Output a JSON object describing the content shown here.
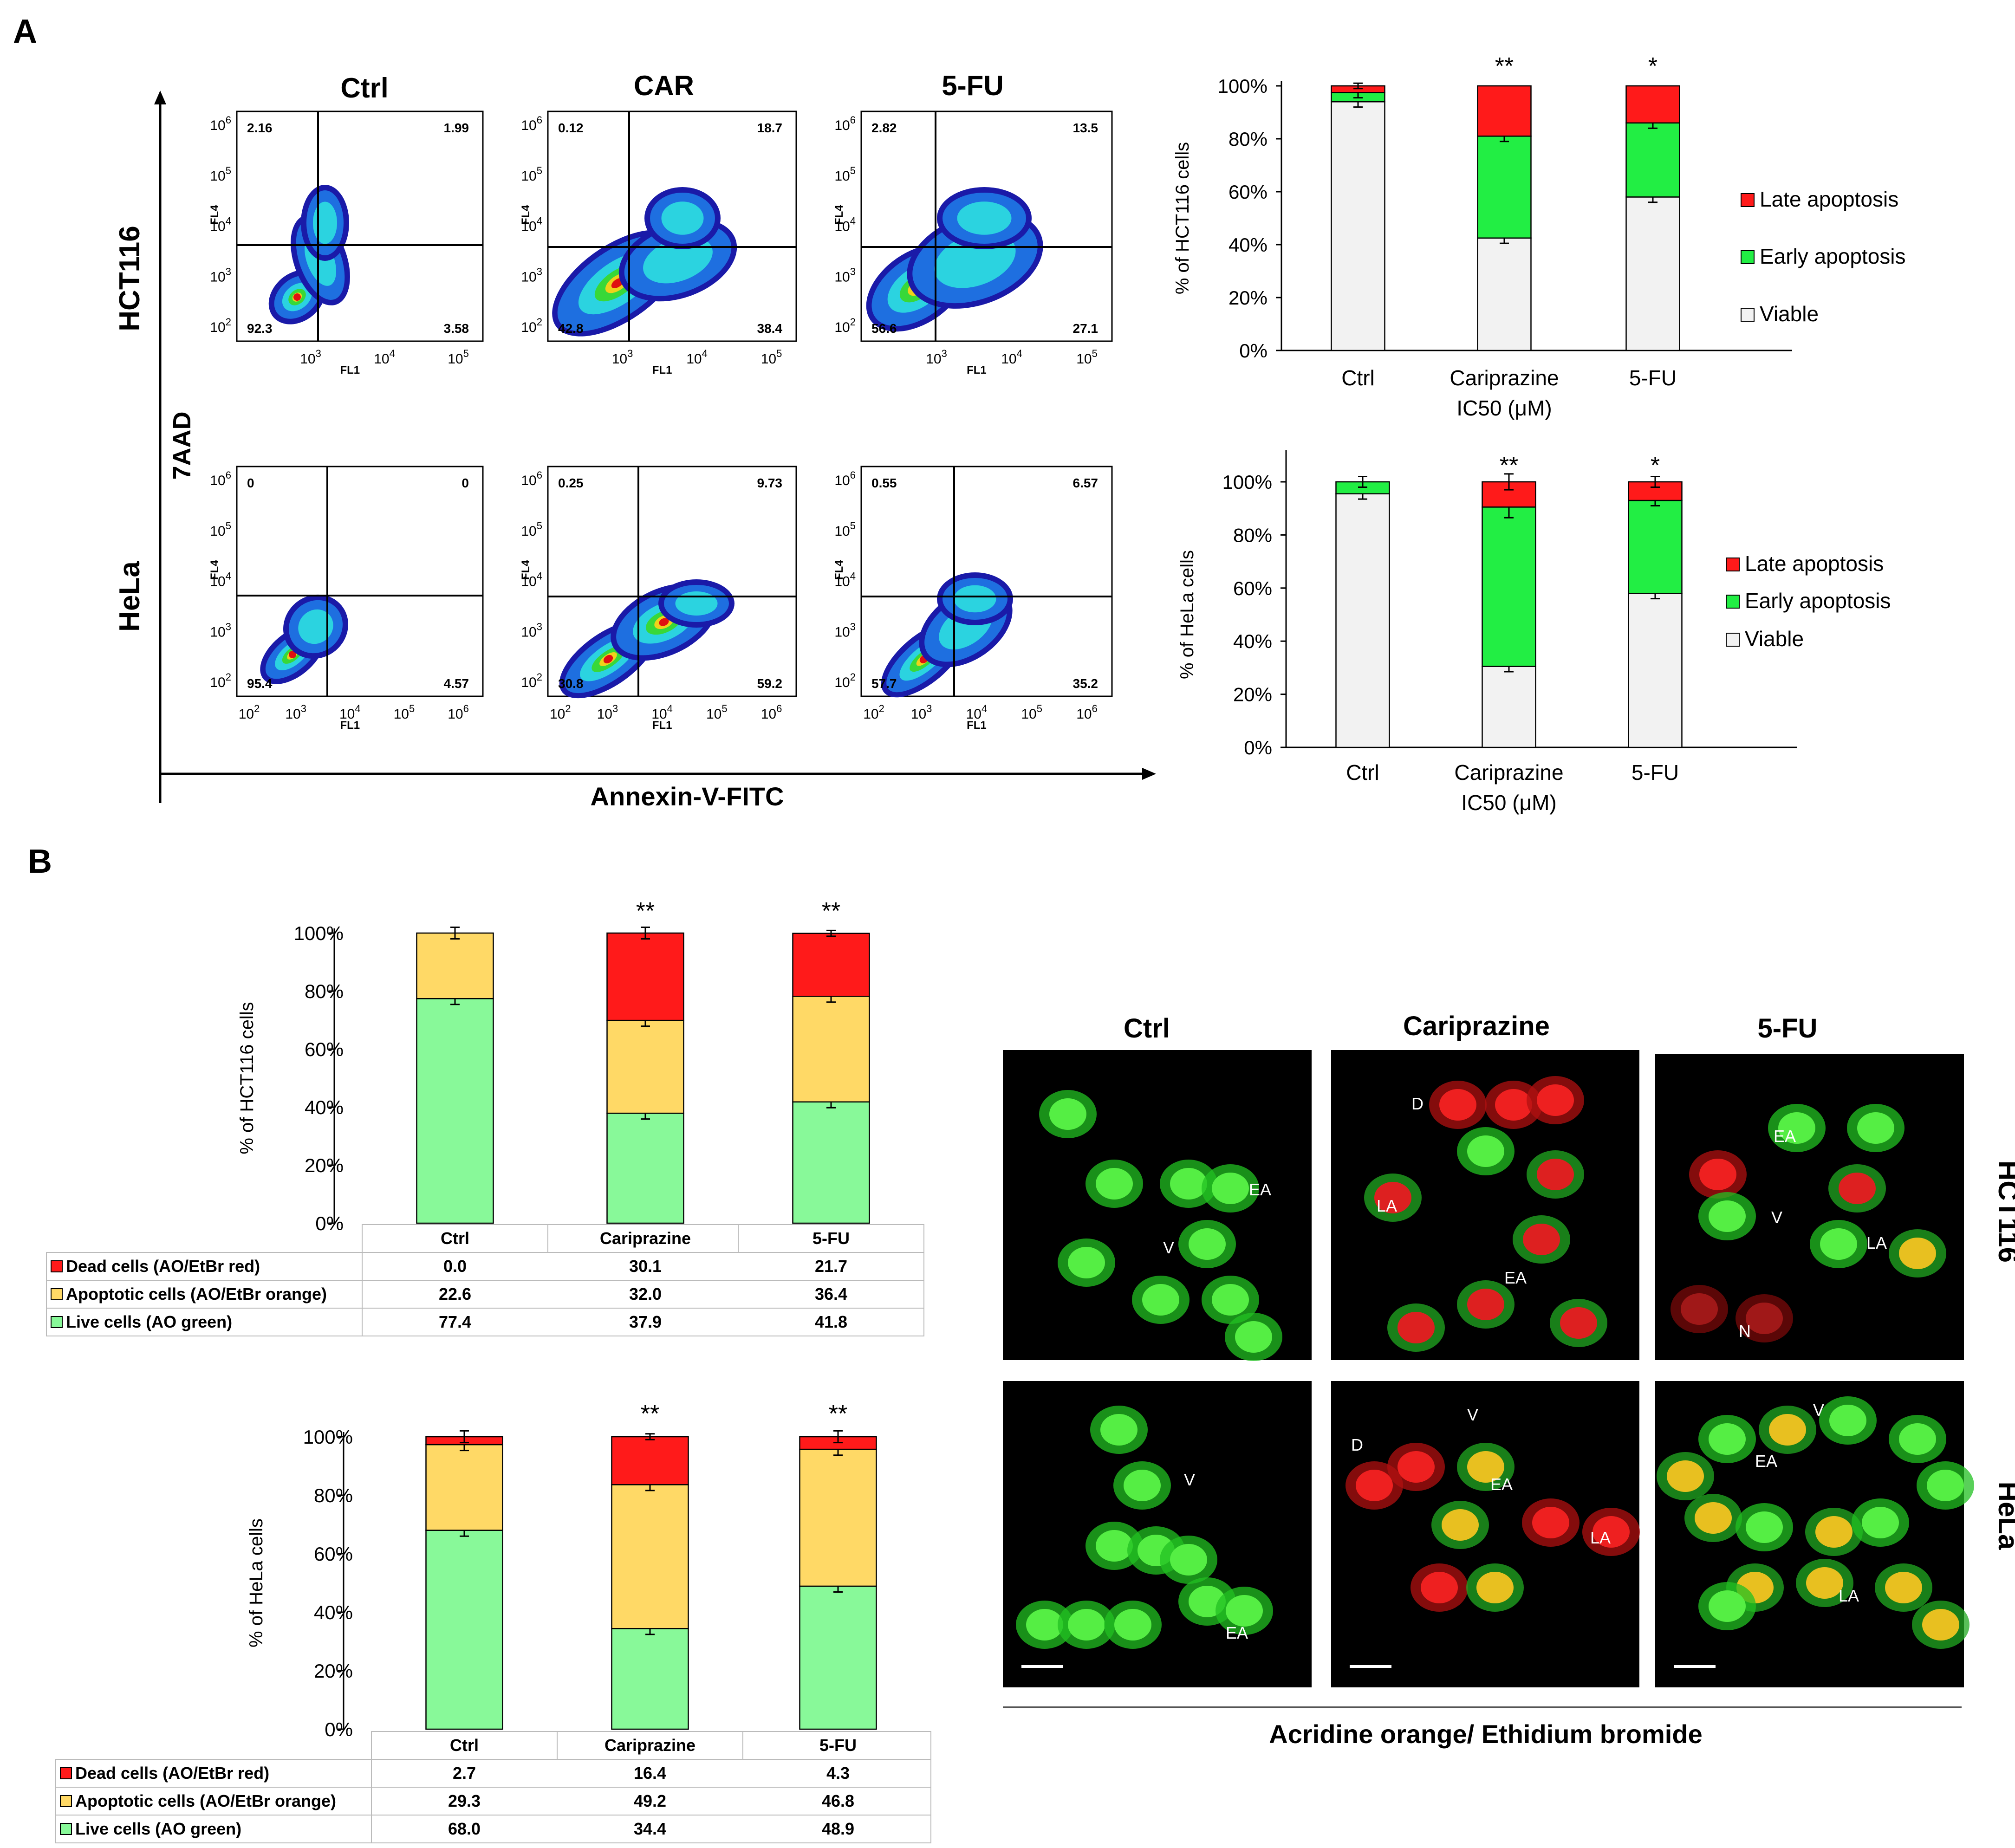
{
  "panels": {
    "A": "A",
    "B": "B"
  },
  "flow": {
    "col_titles": [
      "Ctrl",
      "CAR",
      "5-FU"
    ],
    "row_titles": [
      "HCT116",
      "HeLa"
    ],
    "y_axis": "7AAD",
    "x_axis": "Annexin-V-FITC",
    "ch_x": "FL1",
    "ch_y": "FL4",
    "plots": [
      {
        "q": [
          "2.16",
          "1.99",
          "92.3",
          "3.58"
        ]
      },
      {
        "q": [
          "0.12",
          "18.7",
          "42.8",
          "38.4"
        ]
      },
      {
        "q": [
          "2.82",
          "13.5",
          "56.6",
          "27.1"
        ]
      },
      {
        "q": [
          "0",
          "0",
          "95.4",
          "4.57"
        ]
      },
      {
        "q": [
          "0.25",
          "9.73",
          "30.8",
          "59.2"
        ]
      },
      {
        "q": [
          "0.55",
          "6.57",
          "57.7",
          "35.2"
        ]
      }
    ]
  },
  "chart_data": [
    {
      "type": "bar",
      "stacked": true,
      "ylabel": "% of HCT116 cells",
      "categories": [
        "Ctrl",
        "Cariprazine",
        "5-FU"
      ],
      "xlabel": "IC50 (μM)",
      "yticks": [
        "0%",
        "20%",
        "40%",
        "60%",
        "80%",
        "100%"
      ],
      "significance": [
        "",
        "**",
        "*"
      ],
      "series": [
        {
          "name": "Viable",
          "color": "#f2f2f2",
          "values": [
            94,
            42.5,
            58
          ]
        },
        {
          "name": "Early apoptosis",
          "color": "#22ee44",
          "values": [
            3.5,
            38.5,
            28
          ]
        },
        {
          "name": "Late apoptosis",
          "color": "#ff1a1a",
          "values": [
            2.5,
            19,
            14
          ]
        }
      ]
    },
    {
      "type": "bar",
      "stacked": true,
      "ylabel": "% of HeLa cells",
      "categories": [
        "Ctrl",
        "Cariprazine",
        "5-FU"
      ],
      "xlabel": "IC50 (μM)",
      "yticks": [
        "0%",
        "20%",
        "40%",
        "60%",
        "80%",
        "100%"
      ],
      "significance": [
        "",
        "**",
        "*"
      ],
      "series": [
        {
          "name": "Viable",
          "color": "#f2f2f2",
          "values": [
            95.5,
            30.5,
            58
          ]
        },
        {
          "name": "Early apoptosis",
          "color": "#22ee44",
          "values": [
            4.5,
            60,
            35
          ]
        },
        {
          "name": "Late apoptosis",
          "color": "#ff1a1a",
          "values": [
            0,
            9.5,
            7
          ]
        }
      ]
    },
    {
      "type": "bar",
      "stacked": true,
      "ylabel": "% of HCT116 cells",
      "categories": [
        "Ctrl",
        "Cariprazine",
        "5-FU"
      ],
      "yticks": [
        "0%",
        "20%",
        "40%",
        "60%",
        "80%",
        "100%"
      ],
      "significance": [
        "",
        "**",
        "**"
      ],
      "series": [
        {
          "name": "Live cells (AO green)",
          "color": "#88f999",
          "values": [
            77.4,
            37.9,
            41.8
          ]
        },
        {
          "name": "Apoptotic cells (AO/EtBr orange)",
          "color": "#ffd966",
          "values": [
            22.6,
            32.0,
            36.4
          ]
        },
        {
          "name": "Dead cells (AO/EtBr red)",
          "color": "#ff1a1a",
          "values": [
            0.0,
            30.1,
            21.7
          ]
        }
      ],
      "table_rows": [
        {
          "label": "Dead cells (AO/EtBr red)",
          "color": "#ff1a1a",
          "cells": [
            "0.0",
            "30.1",
            "21.7"
          ]
        },
        {
          "label": "Apoptotic cells (AO/EtBr orange)",
          "color": "#ffd966",
          "cells": [
            "22.6",
            "32.0",
            "36.4"
          ]
        },
        {
          "label": "Live cells (AO green)",
          "color": "#88f999",
          "cells": [
            "77.4",
            "37.9",
            "41.8"
          ]
        }
      ]
    },
    {
      "type": "bar",
      "stacked": true,
      "ylabel": "% of HeLa cells",
      "categories": [
        "Ctrl",
        "Cariprazine",
        "5-FU"
      ],
      "yticks": [
        "0%",
        "20%",
        "40%",
        "60%",
        "80%",
        "100%"
      ],
      "significance": [
        "",
        "**",
        "**"
      ],
      "series": [
        {
          "name": "Live cells (AO green)",
          "color": "#88f999",
          "values": [
            68.0,
            34.4,
            48.9
          ]
        },
        {
          "name": "Apoptotic cells (AO/EtBr orange)",
          "color": "#ffd966",
          "values": [
            29.3,
            49.2,
            46.8
          ]
        },
        {
          "name": "Dead cells (AO/EtBr red)",
          "color": "#ff1a1a",
          "values": [
            2.7,
            16.4,
            4.3
          ]
        }
      ],
      "table_rows": [
        {
          "label": "Dead cells (AO/EtBr red)",
          "color": "#ff1a1a",
          "cells": [
            "2.7",
            "16.4",
            "4.3"
          ]
        },
        {
          "label": "Apoptotic cells (AO/EtBr orange)",
          "color": "#ffd966",
          "cells": [
            "29.3",
            "49.2",
            "46.8"
          ]
        },
        {
          "label": "Live cells (AO green)",
          "color": "#88f999",
          "cells": [
            "68.0",
            "34.4",
            "48.9"
          ]
        }
      ]
    }
  ],
  "micro": {
    "col_titles": [
      "Ctrl",
      "Cariprazine",
      "5-FU"
    ],
    "row_titles": [
      "HCT116",
      "HeLa"
    ],
    "caption": "Acridine orange/ Ethidium bromide",
    "labels": [
      [
        "V",
        "EA"
      ],
      [
        "D",
        "LA",
        "EA"
      ],
      [
        "EA",
        "V",
        "LA",
        "N"
      ],
      [
        "V",
        "EA"
      ],
      [
        "D",
        "V",
        "EA",
        "LA"
      ],
      [
        "V",
        "EA",
        "LA"
      ]
    ]
  }
}
